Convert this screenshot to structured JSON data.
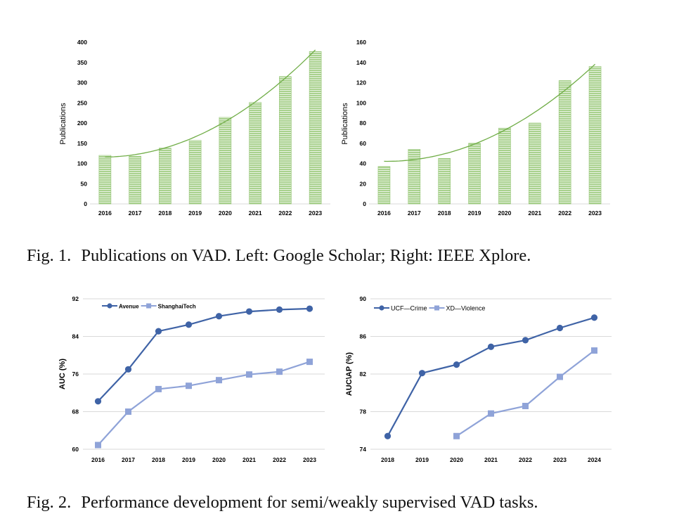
{
  "figure1": {
    "caption_label": "Fig. 1.",
    "caption_text": "Publications on VAD. Left: Google Scholar; Right: IEEE Xplore."
  },
  "figure2": {
    "caption_label": "Fig. 2.",
    "caption_text": "Performance development for semi/weakly supervised VAD tasks."
  },
  "colors": {
    "bar_fill": "#a9d18e",
    "bar_stripe": "#ffffff",
    "trend": "#70ad47",
    "series_dark": "#3f63a6",
    "series_light": "#8fa3d8",
    "grid": "#d9d9d9",
    "text": "#000000"
  },
  "chart_data": [
    {
      "id": "fig1-left",
      "type": "bar",
      "title": "",
      "xlabel": "",
      "ylabel": "Publications",
      "categories": [
        "2016",
        "2017",
        "2018",
        "2019",
        "2020",
        "2021",
        "2022",
        "2023"
      ],
      "values": [
        120,
        118,
        138,
        157,
        214,
        251,
        315,
        377
      ],
      "ylim": [
        0,
        400
      ],
      "yticks": [
        0,
        50,
        100,
        150,
        200,
        250,
        300,
        350,
        400
      ],
      "trendline": "polynomial",
      "grid": false,
      "legend": "none"
    },
    {
      "id": "fig1-right",
      "type": "bar",
      "title": "",
      "xlabel": "",
      "ylabel": "Publications",
      "categories": [
        "2016",
        "2017",
        "2018",
        "2019",
        "2020",
        "2021",
        "2022",
        "2023"
      ],
      "values": [
        37,
        54,
        45,
        60,
        75,
        80,
        122,
        136
      ],
      "ylim": [
        0,
        160
      ],
      "yticks": [
        0,
        20,
        40,
        60,
        80,
        100,
        120,
        140,
        160
      ],
      "trendline": "polynomial",
      "grid": false,
      "legend": "none"
    },
    {
      "id": "fig2-left",
      "type": "line",
      "title": "",
      "xlabel": "",
      "ylabel": "AUC (%)",
      "categories": [
        "2016",
        "2017",
        "2018",
        "2019",
        "2020",
        "2021",
        "2022",
        "2023"
      ],
      "series": [
        {
          "name": "Avenue",
          "marker": "circle",
          "values": [
            70.2,
            77.0,
            85.1,
            86.5,
            88.3,
            89.3,
            89.7,
            89.9
          ]
        },
        {
          "name": "ShanghaiTech",
          "marker": "square",
          "values": [
            60.9,
            68.0,
            72.8,
            73.5,
            74.7,
            75.9,
            76.5,
            78.6
          ]
        }
      ],
      "ylim": [
        60,
        92
      ],
      "yticks": [
        60,
        68,
        76,
        84,
        92
      ],
      "grid": true,
      "legend": "top-left"
    },
    {
      "id": "fig2-right",
      "type": "line",
      "title": "",
      "xlabel": "",
      "ylabel": "AUC\\AP (%)",
      "categories": [
        "2018",
        "2019",
        "2020",
        "2021",
        "2022",
        "2023",
        "2024"
      ],
      "series": [
        {
          "name": "UCF—Crime",
          "marker": "circle",
          "values": [
            75.4,
            82.1,
            83.0,
            84.9,
            85.6,
            86.9,
            88.0
          ]
        },
        {
          "name": "XD—Violence",
          "marker": "square",
          "values": [
            null,
            null,
            75.4,
            77.8,
            78.6,
            81.7,
            84.5
          ]
        }
      ],
      "ylim": [
        74,
        90
      ],
      "yticks": [
        74,
        78,
        82,
        86,
        90
      ],
      "grid": true,
      "legend": "top-left"
    }
  ]
}
